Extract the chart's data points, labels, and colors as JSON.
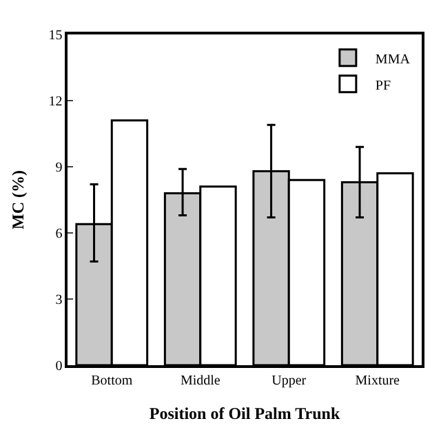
{
  "chart_data": {
    "type": "bar",
    "xlabel": "Position of Oil Palm Trunk",
    "ylabel": "MC (%)",
    "categories": [
      "Bottom",
      "Middle",
      "Upper",
      "Mixture"
    ],
    "series": [
      {
        "name": "MMA",
        "color": "#c8c8c8",
        "values": [
          6.4,
          7.8,
          8.8,
          8.3
        ],
        "errors": [
          [
            4.7,
            8.2
          ],
          [
            6.8,
            8.9
          ],
          [
            6.7,
            10.9
          ],
          [
            6.7,
            9.9
          ]
        ]
      },
      {
        "name": "PF",
        "color": "#ffffff",
        "values": [
          11.1,
          8.1,
          8.4,
          8.7
        ]
      }
    ],
    "ylim": [
      0,
      15
    ],
    "yticks": [
      0,
      3,
      6,
      9,
      12,
      15
    ],
    "legend": "top right"
  }
}
